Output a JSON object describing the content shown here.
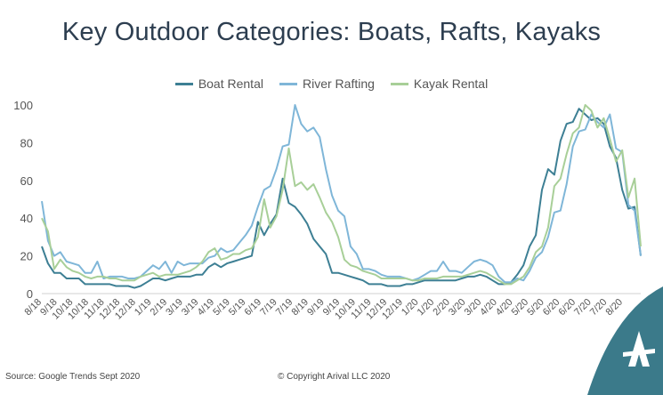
{
  "header": {
    "title": "Key Outdoor Categories: Boats, Rafts, Kayaks"
  },
  "footer": {
    "source": "Source: Google Trends Sept 2020",
    "copyright": "© Copyright Arival LLC 2020"
  },
  "logo": {
    "icon": "arival-logo-icon",
    "color": "#3b7a8a"
  },
  "chart_data": {
    "type": "line",
    "legend_position": "top-center",
    "grid": false,
    "ylim": [
      0,
      100
    ],
    "yticks": [
      0,
      20,
      40,
      60,
      80,
      100
    ],
    "xtick_labels": [
      "8/18",
      "9/18",
      "10/18",
      "10/18",
      "11/18",
      "12/18",
      "12/18",
      "1/19",
      "2/19",
      "3/19",
      "3/19",
      "4/19",
      "5/19",
      "5/19",
      "6/19",
      "7/19",
      "7/19",
      "8/19",
      "9/19",
      "9/19",
      "10/19",
      "11/19",
      "12/19",
      "12/19",
      "1/20",
      "1/20",
      "2/20",
      "3/20",
      "3/20",
      "4/20",
      "4/20",
      "5/20",
      "5/20",
      "6/20",
      "6/20",
      "7/20",
      "7/20",
      "8/20"
    ],
    "series": [
      {
        "name": "Boat Rental",
        "color": "#3d7f94",
        "values": [
          25,
          16,
          11,
          11,
          8,
          8,
          8,
          5,
          5,
          5,
          5,
          5,
          4,
          4,
          4,
          3,
          4,
          6,
          8,
          8,
          7,
          8,
          9,
          9,
          9,
          10,
          10,
          14,
          16,
          14,
          16,
          17,
          18,
          19,
          20,
          38,
          31,
          37,
          42,
          61,
          48,
          46,
          42,
          37,
          29,
          25,
          21,
          11,
          11,
          10,
          9,
          8,
          7,
          5,
          5,
          5,
          4,
          4,
          4,
          5,
          5,
          6,
          7,
          7,
          7,
          7,
          7,
          7,
          8,
          9,
          9,
          10,
          9,
          7,
          5,
          5,
          6,
          10,
          15,
          25,
          31,
          55,
          66,
          63,
          81,
          90,
          91,
          98,
          95,
          92,
          93,
          90,
          78,
          72,
          55,
          45,
          46,
          20
        ]
      },
      {
        "name": "River Rafting",
        "color": "#7fb6d8",
        "values": [
          49,
          28,
          20,
          22,
          17,
          16,
          15,
          11,
          11,
          17,
          8,
          9,
          9,
          9,
          8,
          8,
          9,
          12,
          15,
          13,
          17,
          11,
          17,
          15,
          16,
          16,
          16,
          19,
          20,
          24,
          22,
          23,
          27,
          31,
          36,
          46,
          55,
          57,
          66,
          78,
          79,
          100,
          90,
          86,
          88,
          83,
          66,
          52,
          44,
          41,
          25,
          21,
          13,
          13,
          12,
          10,
          9,
          9,
          9,
          8,
          7,
          8,
          10,
          12,
          12,
          17,
          12,
          12,
          11,
          14,
          17,
          18,
          17,
          15,
          9,
          6,
          6,
          8,
          7,
          12,
          19,
          22,
          30,
          43,
          44,
          58,
          78,
          86,
          87,
          95,
          91,
          88,
          95,
          77,
          75,
          47,
          44,
          20
        ]
      },
      {
        "name": "Kayak Rental",
        "color": "#a8cf98",
        "values": [
          40,
          33,
          13,
          18,
          14,
          12,
          11,
          9,
          8,
          9,
          9,
          8,
          8,
          7,
          7,
          7,
          9,
          10,
          11,
          9,
          10,
          10,
          10,
          11,
          12,
          14,
          17,
          22,
          24,
          18,
          19,
          21,
          21,
          23,
          24,
          30,
          50,
          35,
          41,
          55,
          77,
          57,
          59,
          55,
          58,
          51,
          43,
          38,
          30,
          18,
          15,
          14,
          12,
          11,
          10,
          8,
          8,
          8,
          8,
          8,
          7,
          7,
          8,
          8,
          8,
          9,
          9,
          9,
          9,
          10,
          11,
          12,
          11,
          9,
          7,
          5,
          5,
          7,
          9,
          14,
          22,
          25,
          35,
          57,
          61,
          74,
          85,
          88,
          100,
          97,
          88,
          93,
          82,
          70,
          76,
          51,
          61,
          25
        ]
      }
    ]
  }
}
